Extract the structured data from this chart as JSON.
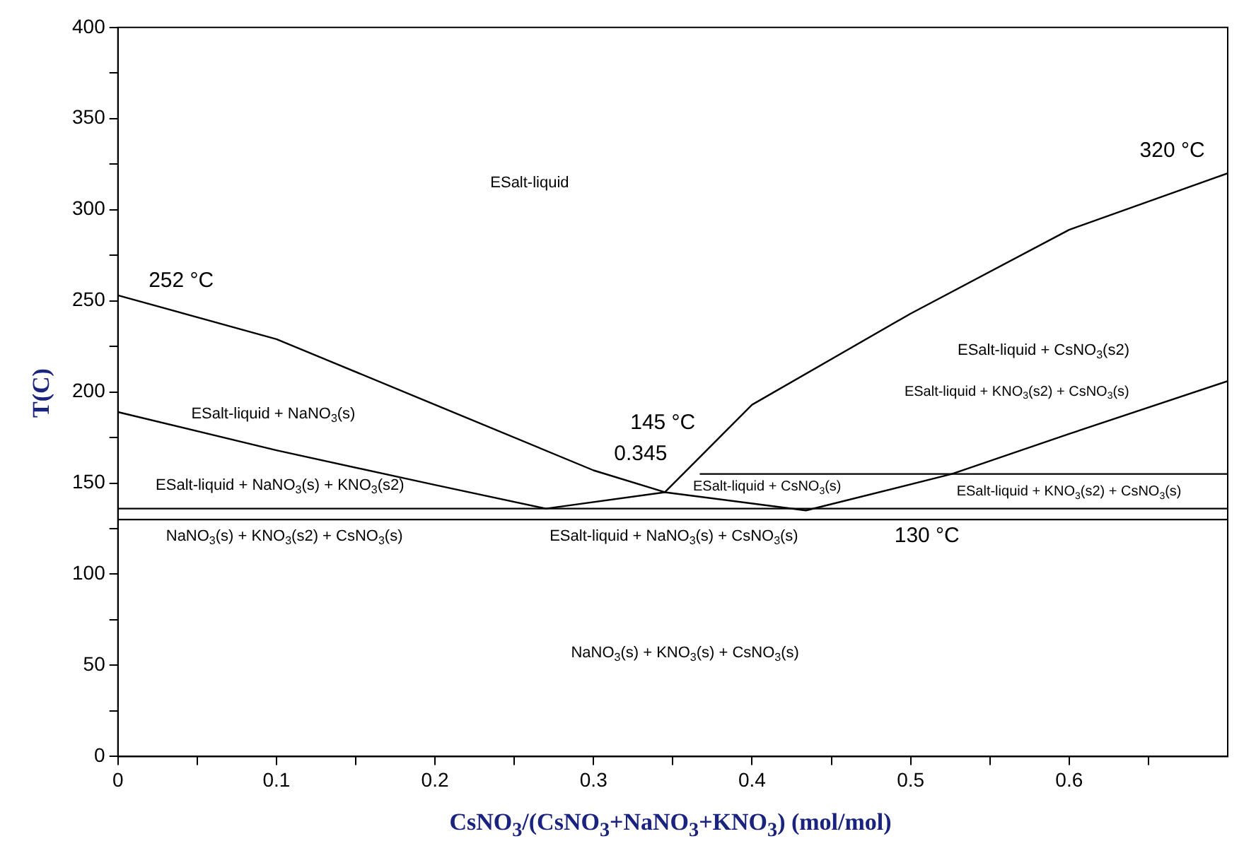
{
  "chart_data": {
    "type": "line",
    "xlabel": "CsNO$_{3}$/(CsNO$_{3}$+NaNO$_{3}$+KNO$_{3}$) (mol/mol)",
    "ylabel": "T(C)",
    "xlim": [
      0,
      0.7
    ],
    "ylim": [
      0,
      400
    ],
    "xticks": [
      0,
      {
        "value": 0.05,
        "label": null
      },
      0.1,
      {
        "value": 0.15,
        "label": null
      },
      0.2,
      {
        "value": 0.25,
        "label": null
      },
      0.3,
      {
        "value": 0.35,
        "label": null
      },
      0.4,
      {
        "value": 0.45,
        "label": null
      },
      0.5,
      {
        "value": 0.55,
        "label": null
      },
      0.6,
      {
        "value": 0.65,
        "label": null
      }
    ],
    "yticks": [
      0,
      {
        "value": 25,
        "label": null
      },
      50,
      {
        "value": 75,
        "label": null
      },
      100,
      {
        "value": 125,
        "label": null
      },
      150,
      {
        "value": 175,
        "label": null
      },
      200,
      {
        "value": 225,
        "label": null
      },
      250,
      {
        "value": 275,
        "label": null
      },
      300,
      {
        "value": 325,
        "label": null
      },
      350,
      {
        "value": 375,
        "label": null
      },
      400
    ],
    "grid": false,
    "legend": false,
    "marker": "none",
    "line_style": "solid",
    "series": [
      {
        "color": "#000000",
        "x": [
          0,
          0.1,
          0.2,
          0.3,
          0.345,
          0.4,
          0.5,
          0.6,
          0.7
        ],
        "values": [
          253,
          229,
          193,
          157,
          145,
          193,
          243,
          289,
          320
        ]
      },
      {
        "color": "#000000",
        "x": [
          0,
          0.1,
          0.2,
          0.27,
          0.345,
          0.434,
          0.526,
          0.6,
          0.7
        ],
        "values": [
          189,
          168,
          149,
          136,
          145,
          135,
          155,
          177,
          206
        ]
      },
      {
        "color": "#000000",
        "x": [
          0.367,
          0.7
        ],
        "values": [
          155,
          155
        ]
      },
      {
        "color": "#000000",
        "x": [
          0,
          0.7
        ],
        "values": [
          136,
          136
        ]
      },
      {
        "color": "#000000",
        "x": [
          0,
          0.7
        ],
        "values": [
          130,
          130
        ]
      }
    ],
    "annotations": [
      "252 °C",
      "320 °C",
      "145 °C",
      "0.345",
      "130 °C",
      "ESalt-liquid",
      "ESalt-liquid + NaNO$_{3}$(s)",
      "ESalt-liquid + NaNO$_{3}$(s) + KNO$_{3}$(s2)",
      "NaNO$_{3}$(s) + KNO$_{3}$(s2) + CsNO$_{3}$(s)",
      "ESalt-liquid + NaNO$_{3}$(s) + CsNO$_{3}$(s)",
      "ESalt-liquid + CsNO$_{3}$(s)",
      "ESalt-liquid + CsNO$_{3}$(s2)",
      "ESalt-liquid + KNO$_{3}$(s2) + CsNO$_{3}$(s)",
      "ESalt-liquid + KNO$_{3}$(s2) + CsNO$_{3}$(s)",
      "NaNO$_{3}$(s) + KNO$_{3}$(s) + CsNO$_{3}$(s)"
    ]
  }
}
